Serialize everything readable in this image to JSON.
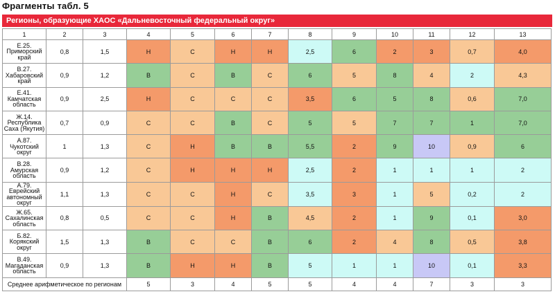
{
  "title": "Фрагменты табл. 5",
  "banner": "Регионы, образующие ХАОС «Дальневосточный федеральный округ»",
  "colors": {
    "N": "#f49a6a",
    "S": "#f9c896",
    "V": "#97ce97",
    "cyan": "#cdfaf6",
    "lav": "#c8c8f6",
    "banner": "#e8283a"
  },
  "headers": [
    "1",
    "2",
    "3",
    "4",
    "5",
    "6",
    "7",
    "8",
    "9",
    "10",
    "11",
    "12",
    "13"
  ],
  "rows": [
    {
      "region": [
        "Е.25.",
        "Приморский",
        "край"
      ],
      "c2": "0,8",
      "c3": "1,5",
      "cells": [
        [
          "Н",
          "N"
        ],
        [
          "С",
          "S"
        ],
        [
          "Н",
          "N"
        ],
        [
          "Н",
          "N"
        ],
        [
          "2,5",
          "cyan"
        ],
        [
          "6",
          "V"
        ],
        [
          "2",
          "N"
        ],
        [
          "3",
          "N"
        ],
        [
          "0,7",
          "S"
        ],
        [
          "4,0",
          "N"
        ]
      ]
    },
    {
      "region": [
        "В.27.",
        "Хабаровский",
        "край"
      ],
      "c2": "0,9",
      "c3": "1,2",
      "cells": [
        [
          "В",
          "V"
        ],
        [
          "С",
          "S"
        ],
        [
          "В",
          "V"
        ],
        [
          "С",
          "S"
        ],
        [
          "6",
          "V"
        ],
        [
          "5",
          "S"
        ],
        [
          "8",
          "V"
        ],
        [
          "4",
          "S"
        ],
        [
          "2",
          "cyan"
        ],
        [
          "4,3",
          "S"
        ]
      ]
    },
    {
      "region": [
        "Е.41.",
        "Камчатская",
        "область"
      ],
      "c2": "0,9",
      "c3": "2,5",
      "cells": [
        [
          "Н",
          "N"
        ],
        [
          "С",
          "S"
        ],
        [
          "С",
          "S"
        ],
        [
          "С",
          "S"
        ],
        [
          "3,5",
          "N"
        ],
        [
          "6",
          "V"
        ],
        [
          "5",
          "V"
        ],
        [
          "8",
          "V"
        ],
        [
          "0,6",
          "S"
        ],
        [
          "7,0",
          "V"
        ]
      ]
    },
    {
      "region": [
        "Ж.14.",
        "Республика",
        "Саха (Якутия)"
      ],
      "c2": "0,7",
      "c3": "0,9",
      "cells": [
        [
          "С",
          "S"
        ],
        [
          "С",
          "S"
        ],
        [
          "В",
          "V"
        ],
        [
          "С",
          "S"
        ],
        [
          "5",
          "V"
        ],
        [
          "5",
          "S"
        ],
        [
          "7",
          "V"
        ],
        [
          "7",
          "V"
        ],
        [
          "1",
          "V"
        ],
        [
          "7,0",
          "V"
        ]
      ]
    },
    {
      "region": [
        "А.87.",
        "Чукотский",
        "округ"
      ],
      "c2": "1",
      "c3": "1,3",
      "cells": [
        [
          "С",
          "S"
        ],
        [
          "Н",
          "N"
        ],
        [
          "В",
          "V"
        ],
        [
          "В",
          "V"
        ],
        [
          "5,5",
          "V"
        ],
        [
          "2",
          "N"
        ],
        [
          "9",
          "V"
        ],
        [
          "10",
          "lav"
        ],
        [
          "0,9",
          "S"
        ],
        [
          "6",
          "V"
        ]
      ]
    },
    {
      "region": [
        "В.28. Амурская",
        "область"
      ],
      "c2": "0,9",
      "c3": "1,2",
      "cells": [
        [
          "С",
          "S"
        ],
        [
          "Н",
          "N"
        ],
        [
          "Н",
          "N"
        ],
        [
          "Н",
          "N"
        ],
        [
          "2,5",
          "cyan"
        ],
        [
          "2",
          "N"
        ],
        [
          "1",
          "cyan"
        ],
        [
          "1",
          "cyan"
        ],
        [
          "1",
          "cyan"
        ],
        [
          "2",
          "cyan"
        ]
      ]
    },
    {
      "region": [
        "А.79.",
        "Еврейский",
        "автономный",
        "округ"
      ],
      "c2": "1,1",
      "c3": "1,3",
      "cells": [
        [
          "С",
          "S"
        ],
        [
          "С",
          "S"
        ],
        [
          "Н",
          "N"
        ],
        [
          "С",
          "S"
        ],
        [
          "3,5",
          "cyan"
        ],
        [
          "3",
          "N"
        ],
        [
          "1",
          "cyan"
        ],
        [
          "5",
          "S"
        ],
        [
          "0,2",
          "cyan"
        ],
        [
          "2",
          "cyan"
        ]
      ]
    },
    {
      "region": [
        "Ж.65.",
        "Сахалинская",
        "область"
      ],
      "c2": "0,8",
      "c3": "0,5",
      "cells": [
        [
          "С",
          "S"
        ],
        [
          "С",
          "S"
        ],
        [
          "Н",
          "N"
        ],
        [
          "В",
          "V"
        ],
        [
          "4,5",
          "S"
        ],
        [
          "2",
          "N"
        ],
        [
          "1",
          "cyan"
        ],
        [
          "9",
          "V"
        ],
        [
          "0,1",
          "cyan"
        ],
        [
          "3,0",
          "N"
        ]
      ]
    },
    {
      "region": [
        "Б.82.",
        "Корякский",
        "округ"
      ],
      "c2": "1,5",
      "c3": "1,3",
      "cells": [
        [
          "В",
          "V"
        ],
        [
          "С",
          "S"
        ],
        [
          "С",
          "S"
        ],
        [
          "В",
          "V"
        ],
        [
          "6",
          "V"
        ],
        [
          "2",
          "N"
        ],
        [
          "4",
          "S"
        ],
        [
          "8",
          "V"
        ],
        [
          "0,5",
          "S"
        ],
        [
          "3,8",
          "N"
        ]
      ]
    },
    {
      "region": [
        "В.49.",
        "Магаданская",
        "область"
      ],
      "c2": "0,9",
      "c3": "1,3",
      "cells": [
        [
          "В",
          "V"
        ],
        [
          "Н",
          "N"
        ],
        [
          "Н",
          "N"
        ],
        [
          "В",
          "V"
        ],
        [
          "5",
          "cyan"
        ],
        [
          "1",
          "cyan"
        ],
        [
          "1",
          "cyan"
        ],
        [
          "10",
          "lav"
        ],
        [
          "0,1",
          "cyan"
        ],
        [
          "3,3",
          "N"
        ]
      ]
    }
  ],
  "footer": {
    "label": "Среднее арифметическое по регионам",
    "values": [
      "5",
      "3",
      "4",
      "5",
      "5",
      "4",
      "4",
      "7",
      "3",
      "3"
    ]
  }
}
